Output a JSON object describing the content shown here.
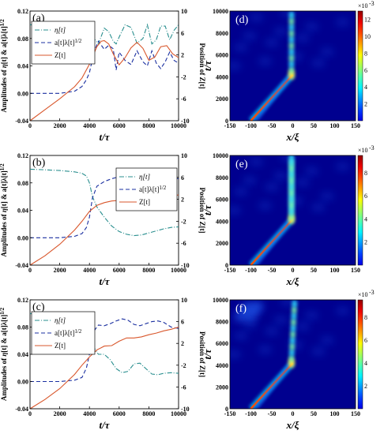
{
  "chart_data": [
    {
      "type": "line",
      "panel_label": "(a)",
      "xlabel": "t/τ",
      "ylabel_left": "Amplitudes of η[t] & a[t]λ[t]^1/2",
      "ylabel_right": "Position of Z[t]",
      "xlim": [
        0,
        10000
      ],
      "ylim_left": [
        -0.04,
        0.12
      ],
      "ylim_right": [
        -10,
        10
      ],
      "x_ticks": [
        "0",
        "2000",
        "4000",
        "6000",
        "8000",
        "10000"
      ],
      "y_ticks_left": [
        "-0.04",
        "0.00",
        "0.04",
        "0.08",
        "0.12"
      ],
      "y_ticks_right": [
        "-10",
        "-6",
        "-2",
        "2",
        "6",
        "10"
      ],
      "legend_position": "top-left",
      "legend": [
        "η[t]",
        "a[t]λ[t]1/2",
        "Z[t]"
      ],
      "series": [
        {
          "name": "η[t]",
          "color": "#2a8f8f",
          "style": "dash-dot",
          "axis": "left",
          "x": [
            0,
            1000,
            2000,
            3000,
            3500,
            3800,
            4000,
            4300,
            4600,
            5000,
            5300,
            5600,
            5800,
            6000,
            6400,
            6800,
            7200,
            7600,
            7900,
            8200,
            8500,
            8800,
            9100,
            9400,
            9700,
            10000
          ],
          "y": [
            0.1,
            0.1,
            0.1,
            0.1,
            0.1,
            0.099,
            0.096,
            0.08,
            0.072,
            0.095,
            0.09,
            0.076,
            0.072,
            0.082,
            0.1,
            0.096,
            0.073,
            0.08,
            0.1,
            0.072,
            0.078,
            0.098,
            0.098,
            0.078,
            0.092,
            0.1
          ]
        },
        {
          "name": "a[t]λ[t]1/2",
          "color": "#1a2fa0",
          "style": "dashed",
          "axis": "left",
          "x": [
            0,
            1000,
            2000,
            3000,
            3500,
            3800,
            4000,
            4300,
            4600,
            5000,
            5300,
            5600,
            5800,
            6000,
            6400,
            6800,
            7200,
            7600,
            7900,
            8200,
            8500,
            8800,
            9100,
            9400,
            9700,
            10000
          ],
          "y": [
            0.0,
            0.0,
            0.0,
            0.003,
            0.01,
            0.02,
            0.03,
            0.06,
            0.076,
            0.064,
            0.07,
            0.065,
            0.034,
            0.06,
            0.048,
            0.042,
            0.062,
            0.046,
            0.04,
            0.062,
            0.044,
            0.036,
            0.046,
            0.06,
            0.048,
            0.044
          ]
        },
        {
          "name": "Z[t]",
          "color": "#d9572c",
          "style": "solid",
          "axis": "right",
          "x": [
            0,
            1000,
            2000,
            3000,
            3500,
            4000,
            4500,
            4800,
            5000,
            5300,
            5600,
            6000,
            6400,
            6800,
            7200,
            7600,
            8000,
            8400,
            8800,
            9200,
            9600,
            10000
          ],
          "y": [
            -10,
            -8,
            -6,
            -3.8,
            -2.2,
            0.3,
            3.5,
            4.5,
            4.6,
            4,
            2.2,
            0.2,
            1.5,
            3.3,
            4.3,
            3.2,
            1,
            1.6,
            3.5,
            3.7,
            2.2,
            1.5
          ]
        }
      ]
    },
    {
      "type": "line",
      "panel_label": "(b)",
      "xlabel": "t/τ",
      "ylabel_left": "Amplitudes of η[t] & a[t]λ[t]^1/2",
      "ylabel_right": "Position of Z[t]",
      "xlim": [
        0,
        10000
      ],
      "ylim_left": [
        -0.04,
        0.12
      ],
      "ylim_right": [
        -10,
        10
      ],
      "x_ticks": [
        "0",
        "2000",
        "4000",
        "6000",
        "8000",
        "10000"
      ],
      "y_ticks_left": [
        "-0.04",
        "0.00",
        "0.04",
        "0.08",
        "0.12"
      ],
      "y_ticks_right": [
        "-10",
        "-6",
        "-2",
        "2",
        "6",
        "10"
      ],
      "legend_position": "top-right",
      "legend": [
        "η[t]",
        "a[t]λ[t]1/2",
        "Z[t]"
      ],
      "series": [
        {
          "name": "η[t]",
          "color": "#2a8f8f",
          "style": "dash-dot",
          "axis": "left",
          "x": [
            0,
            1000,
            2000,
            3000,
            3500,
            3800,
            4000,
            4200,
            4500,
            5000,
            5500,
            6000,
            6500,
            7000,
            7500,
            8000,
            8500,
            9000,
            9500,
            10000
          ],
          "y": [
            0.1,
            0.099,
            0.098,
            0.096,
            0.094,
            0.09,
            0.08,
            0.06,
            0.045,
            0.03,
            0.017,
            0.009,
            0.005,
            0.003,
            0.004,
            0.007,
            0.01,
            0.013,
            0.015,
            0.016
          ]
        },
        {
          "name": "a[t]λ[t]1/2",
          "color": "#1a2fa0",
          "style": "dashed",
          "axis": "left",
          "x": [
            0,
            1000,
            2000,
            3000,
            3500,
            3800,
            4000,
            4200,
            4500,
            5000,
            5500,
            6000,
            6500,
            7000,
            7500,
            8000,
            8500,
            9000,
            9500,
            10000
          ],
          "y": [
            0.0,
            0.0,
            0.0,
            0.002,
            0.006,
            0.015,
            0.03,
            0.058,
            0.075,
            0.082,
            0.086,
            0.089,
            0.091,
            0.092,
            0.092,
            0.091,
            0.09,
            0.089,
            0.088,
            0.086
          ]
        },
        {
          "name": "Z[t]",
          "color": "#d9572c",
          "style": "solid",
          "axis": "right",
          "x": [
            0,
            1000,
            2000,
            3000,
            3500,
            4000,
            4500,
            5000,
            5500,
            6000,
            6500,
            7000,
            7500,
            8000,
            8500,
            9000,
            9500,
            10000
          ],
          "y": [
            -10,
            -8.3,
            -6.2,
            -3.6,
            -2,
            -0.2,
            0.9,
            1.4,
            1.7,
            1.8,
            1.9,
            2,
            2.1,
            2.2,
            2.3,
            2.5,
            2.6,
            2.8
          ]
        }
      ]
    },
    {
      "type": "line",
      "panel_label": "(c)",
      "xlabel": "t/τ",
      "ylabel_left": "Amplitudes of η[t] & a[t]λ[t]^1/2",
      "ylabel_right": "Position of Z[t]",
      "xlim": [
        0,
        10000
      ],
      "ylim_left": [
        -0.04,
        0.12
      ],
      "ylim_right": [
        -10,
        10
      ],
      "x_ticks": [
        "0",
        "2000",
        "4000",
        "6000",
        "8000",
        "10000"
      ],
      "y_ticks_left": [
        "-0.04",
        "0.00",
        "0.04",
        "0.08",
        "0.12"
      ],
      "y_ticks_right": [
        "-10",
        "-6",
        "-2",
        "2",
        "6",
        "10"
      ],
      "legend_position": "top-left",
      "legend": [
        "η[t]",
        "a[t]λ[t]1/2",
        "Z[t]"
      ],
      "series": [
        {
          "name": "η[t]",
          "color": "#2a8f8f",
          "style": "dash-dot",
          "axis": "left",
          "x": [
            0,
            1000,
            2000,
            3000,
            3500,
            3800,
            4000,
            4300,
            4600,
            5000,
            5400,
            5800,
            6200,
            6600,
            7000,
            7400,
            7800,
            8200,
            8600,
            9000,
            9500,
            10000
          ],
          "y": [
            0.1,
            0.096,
            0.092,
            0.088,
            0.085,
            0.08,
            0.07,
            0.05,
            0.04,
            0.04,
            0.032,
            0.019,
            0.013,
            0.015,
            0.026,
            0.027,
            0.019,
            0.011,
            0.01,
            0.012,
            0.013,
            0.012
          ]
        },
        {
          "name": "a[t]λ[t]1/2",
          "color": "#1a2fa0",
          "style": "dashed",
          "axis": "left",
          "x": [
            0,
            1000,
            2000,
            3000,
            3500,
            3800,
            4000,
            4300,
            4600,
            5000,
            5400,
            5800,
            6200,
            6600,
            7000,
            7400,
            7800,
            8200,
            8600,
            9000,
            9500,
            10000
          ],
          "y": [
            0.0,
            0.0,
            0.0,
            0.002,
            0.006,
            0.02,
            0.04,
            0.074,
            0.083,
            0.082,
            0.085,
            0.089,
            0.092,
            0.09,
            0.084,
            0.082,
            0.085,
            0.088,
            0.089,
            0.087,
            0.08,
            0.078
          ]
        },
        {
          "name": "Z[t]",
          "color": "#d9572c",
          "style": "solid",
          "axis": "right",
          "x": [
            0,
            1000,
            2000,
            3000,
            3500,
            4000,
            4500,
            5000,
            5500,
            6000,
            6500,
            7000,
            7500,
            8000,
            8500,
            9000,
            9500,
            10000
          ],
          "y": [
            -10,
            -8.3,
            -6.3,
            -3.7,
            -2,
            -0.5,
            0.8,
            1.5,
            1.6,
            2.4,
            3,
            3,
            3.2,
            3.6,
            3.9,
            4.3,
            4.6,
            5
          ]
        }
      ]
    },
    {
      "type": "heatmap",
      "panel_label": "(d)",
      "xlabel": "x/ξ",
      "ylabel": "t/τ",
      "xlim": [
        -150,
        150
      ],
      "ylim": [
        0,
        10000
      ],
      "x_ticks": [
        "-150",
        "-100",
        "-50",
        "0",
        "50",
        "100",
        "150"
      ],
      "y_ticks": [
        "0",
        "2000",
        "4000",
        "6000",
        "8000",
        "10000"
      ],
      "colorbar_exponent": "×10",
      "colorbar_exponent_power": "-3",
      "colorbar_ticks": [
        "2",
        "4",
        "6",
        "8",
        "10",
        "12"
      ],
      "colorbar_max": 13,
      "features": {
        "track_start_x": -100,
        "track_meet_t": 4200,
        "track_end_x": 0,
        "peak_x": -3,
        "late_times": "oscillating blobs near x=0"
      }
    },
    {
      "type": "heatmap",
      "panel_label": "(e)",
      "xlabel": "x/ξ",
      "ylabel": "t/τ",
      "xlim": [
        -150,
        150
      ],
      "ylim": [
        0,
        10000
      ],
      "x_ticks": [
        "-150",
        "-100",
        "-50",
        "0",
        "50",
        "100",
        "150"
      ],
      "y_ticks": [
        "0",
        "2000",
        "4000",
        "6000",
        "8000",
        "10000"
      ],
      "colorbar_exponent": "×10",
      "colorbar_exponent_power": "-3",
      "colorbar_ticks": [
        "2",
        "4",
        "6",
        "8"
      ],
      "colorbar_max": 9.5,
      "features": {
        "track_start_x": -100,
        "track_meet_t": 4200,
        "track_end_x": 0,
        "peak_x": -3,
        "late_times": "weak spreading near x=0"
      }
    },
    {
      "type": "heatmap",
      "panel_label": "(f)",
      "xlabel": "x/ξ",
      "ylabel": "t/τ",
      "xlim": [
        -150,
        150
      ],
      "ylim": [
        0,
        10000
      ],
      "x_ticks": [
        "-150",
        "-100",
        "-50",
        "0",
        "50",
        "100",
        "150"
      ],
      "y_ticks": [
        "0",
        "2000",
        "4000",
        "6000",
        "8000",
        "10000"
      ],
      "colorbar_exponent": "×10",
      "colorbar_exponent_power": "-3",
      "colorbar_ticks": [
        "2",
        "4",
        "6",
        "8"
      ],
      "colorbar_max": 9.5,
      "features": {
        "track_start_x": -100,
        "track_meet_t": 4200,
        "track_end_x": 0,
        "peak_x": -3,
        "late_times": "blobs drifting right near x=0"
      }
    }
  ]
}
